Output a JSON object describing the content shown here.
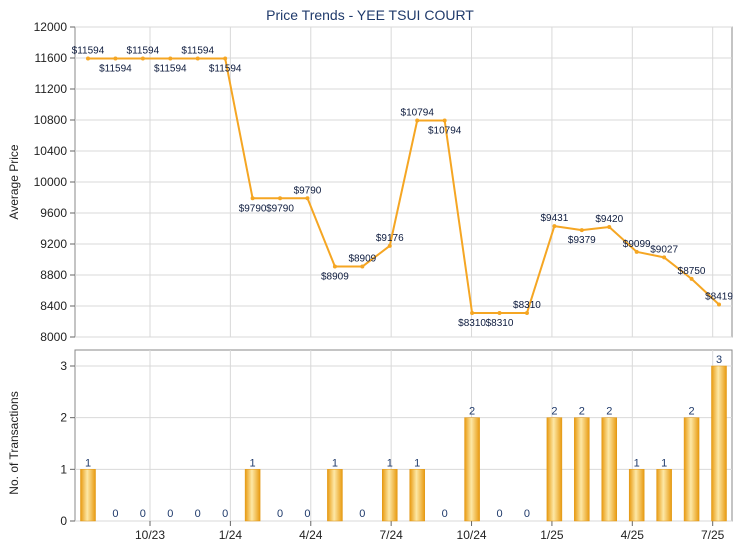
{
  "chart_data": {
    "title": "Price Trends - YEE TSUI COURT",
    "colors": {
      "line": "#f5a623",
      "bar": "#f0a81c",
      "grid": "#d9d9d9",
      "title": "#1f3a6b"
    },
    "x_tick_labels": [
      "10/23",
      "1/24",
      "4/24",
      "7/24",
      "10/24",
      "1/25",
      "4/25",
      "7/25"
    ],
    "price_chart": {
      "type": "line",
      "ylabel": "Average Price",
      "ylim": [
        8000,
        12000
      ],
      "y_ticks": [
        "8000",
        "8400",
        "8800",
        "9200",
        "9600",
        "10000",
        "10400",
        "10800",
        "11200",
        "11600",
        "12000"
      ],
      "values": [
        11594,
        11594,
        11594,
        11594,
        11594,
        11594,
        9790,
        9790,
        9790,
        8909,
        8909,
        9176,
        10794,
        10794,
        8310,
        8310,
        8310,
        9431,
        9379,
        9420,
        9099,
        9027,
        8750,
        8419
      ],
      "labels": [
        "$11594",
        "$11594",
        "$11594",
        "$11594",
        "$11594",
        "$11594",
        "$9790",
        "$9790",
        "$9790",
        "$8909",
        "$8909",
        "$9176",
        "$10794",
        "$10794",
        "$8310",
        "$8310",
        "$8310",
        "$9431",
        "$9379",
        "$9420",
        "$9099",
        "$9027",
        "$8750",
        "$8419"
      ]
    },
    "volume_chart": {
      "type": "bar",
      "ylabel": "No. of Transactions",
      "ylim": [
        0,
        3
      ],
      "y_ticks": [
        "0",
        "1",
        "2",
        "3"
      ],
      "values": [
        1,
        0,
        0,
        0,
        0,
        0,
        1,
        0,
        0,
        1,
        0,
        1,
        1,
        0,
        2,
        0,
        0,
        2,
        2,
        2,
        1,
        1,
        2,
        3
      ],
      "labels": [
        "1",
        "0",
        "0",
        "0",
        "0",
        "0",
        "1",
        "0",
        "0",
        "1",
        "0",
        "1",
        "1",
        "0",
        "2",
        "0",
        "0",
        "2",
        "2",
        "2",
        "1",
        "1",
        "2",
        "3"
      ]
    }
  }
}
